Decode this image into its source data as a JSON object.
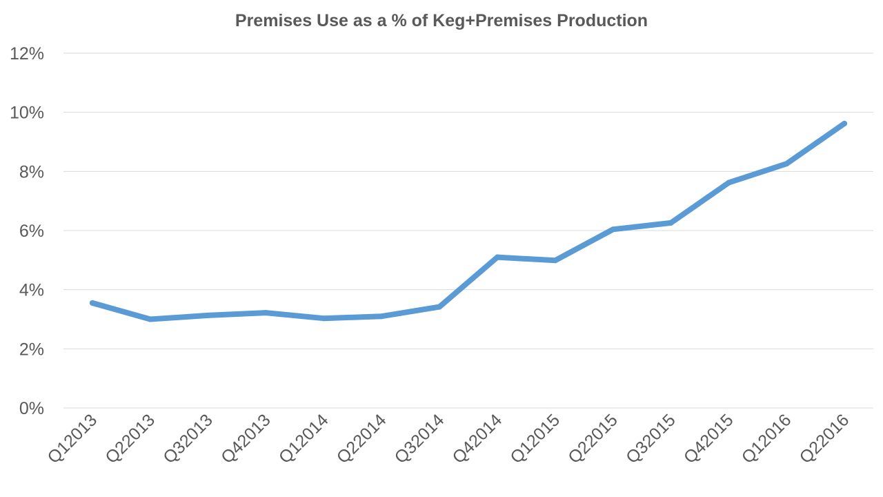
{
  "chart_data": {
    "type": "line",
    "title": "Premises Use as a % of Keg+Premises Production",
    "xlabel": "",
    "ylabel": "",
    "categories": [
      "Q12013",
      "Q22013",
      "Q32013",
      "Q42013",
      "Q12014",
      "Q22014",
      "Q32014",
      "Q42014",
      "Q12015",
      "Q22015",
      "Q32015",
      "Q42015",
      "Q12016",
      "Q22016"
    ],
    "series": [
      {
        "values": [
          3.55,
          3.0,
          3.13,
          3.22,
          3.03,
          3.1,
          3.42,
          5.1,
          4.99,
          6.04,
          6.26,
          7.62,
          8.26,
          9.62
        ]
      }
    ],
    "ylim": [
      0,
      12
    ],
    "yticks": [
      0,
      2,
      4,
      6,
      8,
      10,
      12
    ],
    "ytick_labels": [
      "0%",
      "2%",
      "4%",
      "6%",
      "8%",
      "10%",
      "12%"
    ],
    "grid": true,
    "legend": "none",
    "colors": {
      "series": "#5b9bd5",
      "grid": "#d9d9d9",
      "text": "#595959"
    }
  }
}
